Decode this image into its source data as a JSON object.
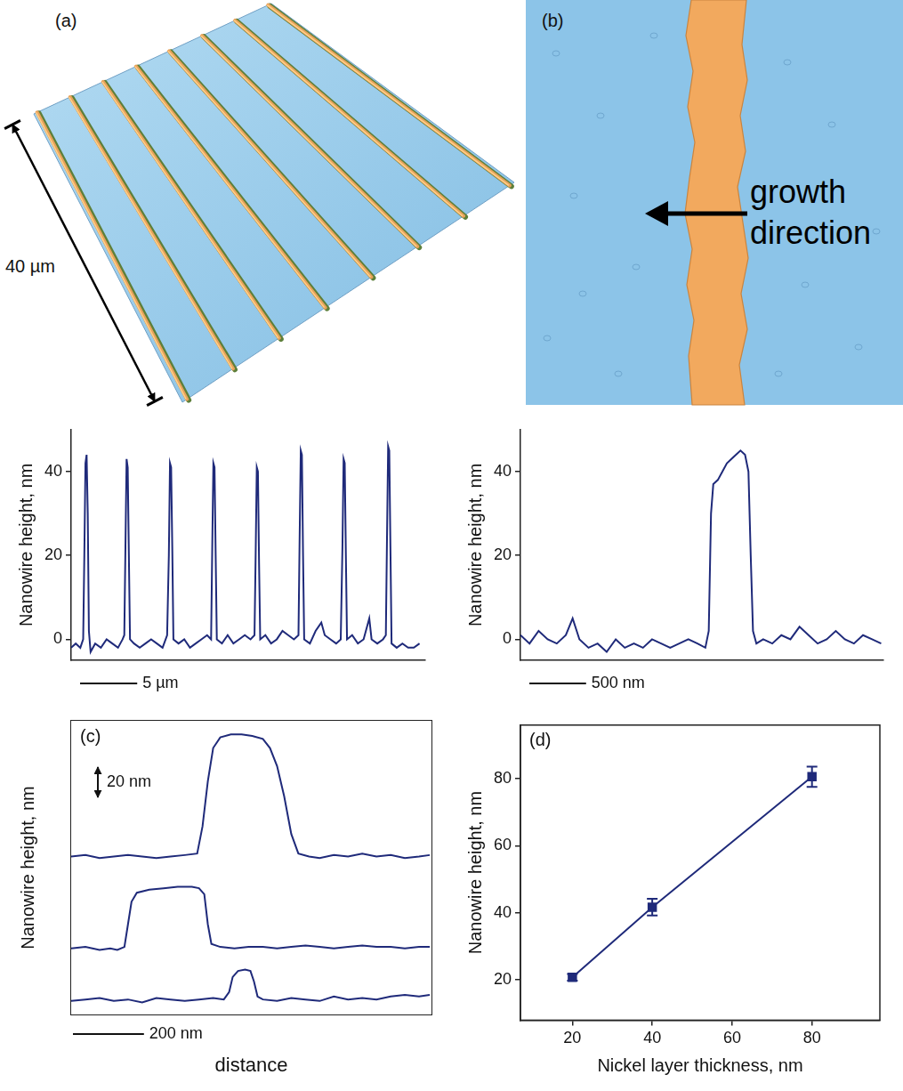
{
  "images": [
    {
      "panel": "(a)",
      "scale_bar_label": "40 µm"
    },
    {
      "panel": "(b)",
      "annotation": "growth direction"
    }
  ],
  "chart_data": [
    {
      "type": "line",
      "y_label": "Nanowire height, nm",
      "color": "#1f2a7a",
      "x": [
        0,
        0.4,
        0.8,
        1.05,
        1.15,
        1.25,
        1.35,
        1.45,
        1.55,
        1.7,
        2.1,
        2.6,
        3.1,
        3.6,
        4.1,
        4.5,
        4.65,
        4.75,
        4.85,
        4.95,
        5.05,
        5.15,
        5.5,
        6,
        6.5,
        7,
        7.5,
        8,
        8.4,
        8.55,
        8.65,
        8.75,
        8.85,
        8.95,
        9.4,
        9.9,
        10.4,
        10.9,
        11.4,
        11.9,
        12.25,
        12.35,
        12.45,
        12.55,
        12.65,
        12.75,
        13.2,
        13.7,
        14.2,
        14.7,
        15.2,
        15.7,
        16.05,
        16.15,
        16.25,
        16.35,
        16.45,
        16.55,
        17,
        17.5,
        18,
        18.5,
        19,
        19.5,
        19.9,
        20,
        20.1,
        20.2,
        20.3,
        20.4,
        20.9,
        21.4,
        21.9,
        22.2,
        22.7,
        23.2,
        23.6,
        23.75,
        23.85,
        23.95,
        24.05,
        24.15,
        24.6,
        25.1,
        25.6,
        26.1,
        26.3,
        26.8,
        27.3,
        27.55,
        27.65,
        27.75,
        27.85,
        27.95,
        28.05,
        28.5,
        29,
        29.5,
        30,
        30.5
      ],
      "values": [
        -2,
        -1,
        -2,
        0,
        20,
        42,
        44,
        30,
        2,
        -3,
        -1,
        -2,
        0,
        -1,
        -2,
        0,
        1,
        22,
        43,
        41,
        20,
        0,
        -1,
        -2,
        -1,
        0,
        -1,
        -2,
        1,
        20,
        42,
        41,
        22,
        0,
        -1,
        0,
        -2,
        -1,
        0,
        1,
        0,
        22,
        42,
        41,
        20,
        0,
        -1,
        1,
        -1,
        0,
        1,
        0,
        1,
        20,
        41,
        40,
        18,
        0,
        1,
        -1,
        0,
        2,
        1,
        0,
        1,
        24,
        45,
        44,
        20,
        0,
        -1,
        2,
        4,
        1,
        0,
        -1,
        0,
        22,
        43,
        42,
        20,
        0,
        1,
        -1,
        0,
        5,
        0,
        -1,
        0,
        1,
        24,
        46,
        45,
        22,
        -1,
        -2,
        -1,
        -2,
        -2,
        -1
      ],
      "xlim": [
        0,
        31
      ],
      "ylim": [
        -5,
        50
      ],
      "yticks": [
        0,
        20,
        40
      ],
      "tick_labels": "y",
      "scale_bars": [
        {
          "axis": "x",
          "value": 5,
          "label": "5 µm"
        }
      ]
    },
    {
      "type": "line",
      "y_label": "Nanowire height, nm",
      "color": "#1f2a7a",
      "x": [
        0,
        80,
        160,
        240,
        320,
        400,
        460,
        520,
        600,
        680,
        760,
        840,
        920,
        1000,
        1080,
        1160,
        1240,
        1320,
        1400,
        1480,
        1560,
        1630,
        1660,
        1680,
        1700,
        1740,
        1780,
        1820,
        1860,
        1900,
        1940,
        1980,
        2010,
        2030,
        2050,
        2080,
        2140,
        2220,
        2300,
        2380,
        2460,
        2540,
        2620,
        2700,
        2780,
        2860,
        2940,
        3020,
        3100,
        3180
      ],
      "values": [
        1,
        -1,
        2,
        0,
        -1,
        1,
        5,
        0,
        -2,
        -1,
        -3,
        0,
        -2,
        -1,
        -2,
        0,
        -1,
        -2,
        -1,
        0,
        -1,
        -2,
        2,
        30,
        37,
        38,
        40,
        42,
        43,
        44,
        45,
        44,
        40,
        20,
        2,
        -1,
        0,
        -1,
        1,
        0,
        3,
        1,
        -1,
        0,
        2,
        0,
        -1,
        1,
        0,
        -1
      ],
      "xlim": [
        0,
        3200
      ],
      "ylim": [
        -5,
        50
      ],
      "yticks": [
        0,
        20,
        40
      ],
      "tick_labels": "y",
      "scale_bars": [
        {
          "axis": "x",
          "value": 500,
          "label": "500 nm"
        }
      ]
    },
    {
      "type": "line",
      "panel": "(c)",
      "x_label": "distance",
      "y_label": "Nanowire height, nm",
      "color": "#1f2a7a",
      "xlim": [
        0,
        1015
      ],
      "tick_labels": false,
      "series": [
        {
          "x": [
            0,
            40,
            80,
            120,
            160,
            200,
            240,
            280,
            320,
            355,
            370,
            385,
            400,
            420,
            450,
            480,
            510,
            540,
            560,
            580,
            600,
            620,
            640,
            670,
            700,
            740,
            780,
            820,
            860,
            900,
            940,
            980,
            1010
          ],
          "values": [
            0,
            1,
            -1,
            0,
            1,
            0,
            -1,
            0,
            1,
            2,
            20,
            50,
            72,
            79,
            81,
            81,
            80,
            78,
            72,
            60,
            40,
            15,
            2,
            0,
            -1,
            1,
            0,
            2,
            0,
            1,
            -1,
            0,
            1
          ],
          "ylim": [
            -15,
            90
          ]
        },
        {
          "x": [
            0,
            40,
            80,
            110,
            130,
            150,
            160,
            170,
            185,
            220,
            260,
            300,
            340,
            360,
            375,
            385,
            395,
            420,
            460,
            500,
            540,
            580,
            620,
            660,
            700,
            740,
            780,
            820,
            860,
            900,
            940,
            980,
            1010
          ],
          "values": [
            -1,
            0,
            -2,
            -1,
            -2,
            0,
            15,
            30,
            36,
            38,
            39,
            40,
            40,
            39,
            35,
            15,
            2,
            0,
            -1,
            0,
            0,
            -1,
            0,
            1,
            0,
            -1,
            0,
            1,
            0,
            0,
            -1,
            0,
            0
          ],
          "ylim": [
            -10,
            45
          ]
        },
        {
          "x": [
            0,
            40,
            80,
            120,
            160,
            200,
            240,
            280,
            320,
            360,
            400,
            430,
            445,
            455,
            470,
            490,
            505,
            515,
            525,
            540,
            580,
            620,
            660,
            700,
            740,
            780,
            820,
            860,
            900,
            940,
            980,
            1010
          ],
          "values": [
            -1,
            0,
            1,
            -1,
            0,
            -2,
            1,
            0,
            -1,
            0,
            1,
            0,
            5,
            15,
            19,
            20,
            19,
            12,
            2,
            0,
            -1,
            1,
            0,
            -1,
            2,
            0,
            1,
            0,
            2,
            3,
            2,
            3
          ],
          "ylim": [
            -10,
            25
          ]
        }
      ],
      "scale_bars": [
        {
          "axis": "x",
          "value": 200,
          "label": "200 nm"
        },
        {
          "axis": "y",
          "value": 20,
          "label": "20 nm"
        }
      ]
    },
    {
      "type": "line",
      "panel": "(d)",
      "x_label": "Nickel layer thickness, nm",
      "y_label": "Nanowire height, nm",
      "color": "#1f2a7a",
      "marker": "square",
      "line_style": "solid",
      "x": [
        20,
        40,
        80
      ],
      "values": [
        20.8,
        41.7,
        80.6
      ],
      "errors": [
        1,
        2.5,
        3
      ],
      "xlim": [
        7,
        97
      ],
      "xticks": [
        20,
        40,
        60,
        80
      ],
      "ylim": [
        8,
        96
      ],
      "yticks": [
        20,
        40,
        60,
        80
      ]
    }
  ]
}
